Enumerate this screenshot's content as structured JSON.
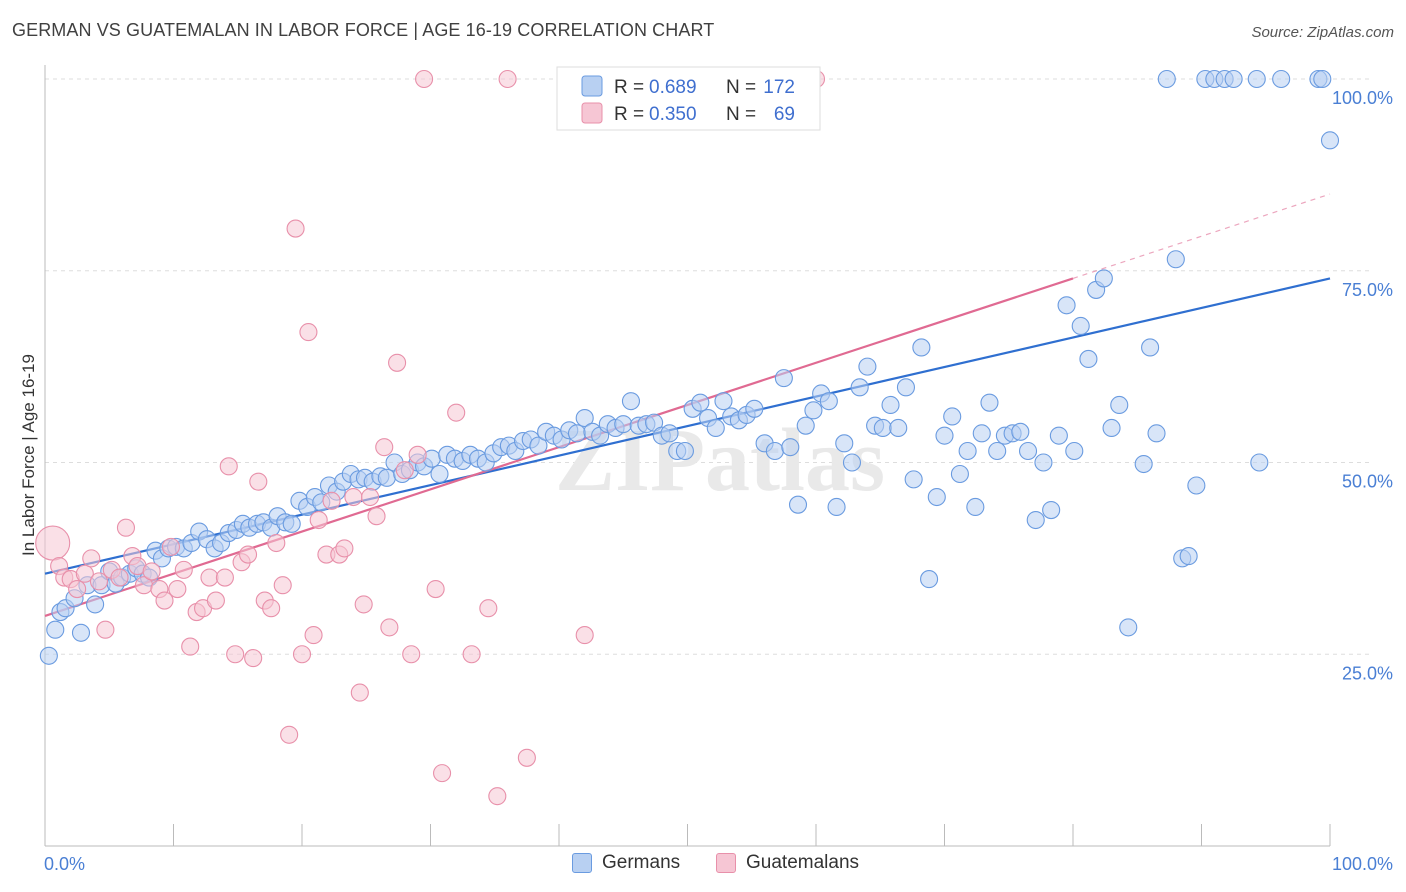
{
  "title": "GERMAN VS GUATEMALAN IN LABOR FORCE | AGE 16-19 CORRELATION CHART",
  "source": "Source: ZipAtlas.com",
  "watermark": "ZIPatlas",
  "chart_data": {
    "type": "scatter",
    "xlabel": "",
    "ylabel": "In Labor Force | Age 16-19",
    "xlim": [
      0,
      100
    ],
    "ylim": [
      0,
      105
    ],
    "x_tick_labels": [
      "0.0%",
      "100.0%"
    ],
    "y_ticks": [
      25,
      50,
      75,
      100
    ],
    "y_tick_labels": [
      "25.0%",
      "50.0%",
      "75.0%",
      "100.0%"
    ],
    "grid": true,
    "legend_top": {
      "rows": [
        {
          "r_label": "R =",
          "r_value": "0.689",
          "n_label": "N =",
          "n_value": "172"
        },
        {
          "r_label": "R =",
          "r_value": "0.350",
          "n_label": "N =",
          "n_value": "69"
        }
      ]
    },
    "series": [
      {
        "name": "Germans",
        "color": "#6a9be0",
        "fill": "#b8d0f2",
        "trend_color": "#2f6fd0",
        "trend": {
          "x": [
            0,
            100
          ],
          "y": [
            35.5,
            74.0
          ]
        },
        "points": [
          [
            0.3,
            24.8
          ],
          [
            0.8,
            28.2
          ],
          [
            1.2,
            30.5
          ],
          [
            1.6,
            31.0
          ],
          [
            2.3,
            32.3
          ],
          [
            2.8,
            27.8
          ],
          [
            3.3,
            34.0
          ],
          [
            3.9,
            31.5
          ],
          [
            4.4,
            34.0
          ],
          [
            5.0,
            35.8
          ],
          [
            5.5,
            34.2
          ],
          [
            6.0,
            35.0
          ],
          [
            6.6,
            35.5
          ],
          [
            7.1,
            36.2
          ],
          [
            7.6,
            35.5
          ],
          [
            8.1,
            35.0
          ],
          [
            8.6,
            38.5
          ],
          [
            9.1,
            37.5
          ],
          [
            9.6,
            38.8
          ],
          [
            10.2,
            39.0
          ],
          [
            10.8,
            38.8
          ],
          [
            11.4,
            39.5
          ],
          [
            12.0,
            41.0
          ],
          [
            12.6,
            40.0
          ],
          [
            13.2,
            38.8
          ],
          [
            13.7,
            39.5
          ],
          [
            14.3,
            40.8
          ],
          [
            14.9,
            41.2
          ],
          [
            15.4,
            42.0
          ],
          [
            15.9,
            41.5
          ],
          [
            16.5,
            42.0
          ],
          [
            17.0,
            42.2
          ],
          [
            17.6,
            41.5
          ],
          [
            18.1,
            43.0
          ],
          [
            18.7,
            42.2
          ],
          [
            19.2,
            42.0
          ],
          [
            19.8,
            45.0
          ],
          [
            20.4,
            44.2
          ],
          [
            21.0,
            45.5
          ],
          [
            21.5,
            44.8
          ],
          [
            22.1,
            47.0
          ],
          [
            22.7,
            46.2
          ],
          [
            23.2,
            47.5
          ],
          [
            23.8,
            48.5
          ],
          [
            24.4,
            47.8
          ],
          [
            24.9,
            48.0
          ],
          [
            25.5,
            47.5
          ],
          [
            26.1,
            48.2
          ],
          [
            26.6,
            48.0
          ],
          [
            27.2,
            50.0
          ],
          [
            27.8,
            48.5
          ],
          [
            28.4,
            49.0
          ],
          [
            29.0,
            50.0
          ],
          [
            29.5,
            49.5
          ],
          [
            30.1,
            50.5
          ],
          [
            30.7,
            48.5
          ],
          [
            31.3,
            51.0
          ],
          [
            31.9,
            50.5
          ],
          [
            32.5,
            50.2
          ],
          [
            33.1,
            51.0
          ],
          [
            33.7,
            50.5
          ],
          [
            34.3,
            50.0
          ],
          [
            34.9,
            51.2
          ],
          [
            35.5,
            52.0
          ],
          [
            36.1,
            52.2
          ],
          [
            36.6,
            51.5
          ],
          [
            37.2,
            52.8
          ],
          [
            37.8,
            53.0
          ],
          [
            38.4,
            52.2
          ],
          [
            39.0,
            54.0
          ],
          [
            39.6,
            53.5
          ],
          [
            40.2,
            53.0
          ],
          [
            40.8,
            54.2
          ],
          [
            41.4,
            53.8
          ],
          [
            42.0,
            55.8
          ],
          [
            42.6,
            54.0
          ],
          [
            43.2,
            53.5
          ],
          [
            43.8,
            55.0
          ],
          [
            44.4,
            54.5
          ],
          [
            45.0,
            55.0
          ],
          [
            45.6,
            58.0
          ],
          [
            46.2,
            54.8
          ],
          [
            46.8,
            55.0
          ],
          [
            47.4,
            55.2
          ],
          [
            48.0,
            53.5
          ],
          [
            48.6,
            53.8
          ],
          [
            49.2,
            51.5
          ],
          [
            49.8,
            51.5
          ],
          [
            50.4,
            57.0
          ],
          [
            51.0,
            57.8
          ],
          [
            51.6,
            55.8
          ],
          [
            52.2,
            54.5
          ],
          [
            52.8,
            58.0
          ],
          [
            53.4,
            56.0
          ],
          [
            54.0,
            55.5
          ],
          [
            54.6,
            56.2
          ],
          [
            55.2,
            57.0
          ],
          [
            56.0,
            52.5
          ],
          [
            56.8,
            51.5
          ],
          [
            57.5,
            61.0
          ],
          [
            58.0,
            52.0
          ],
          [
            58.6,
            44.5
          ],
          [
            59.2,
            54.8
          ],
          [
            59.8,
            56.8
          ],
          [
            60.4,
            59.0
          ],
          [
            61.0,
            58.0
          ],
          [
            61.6,
            44.2
          ],
          [
            62.2,
            52.5
          ],
          [
            62.8,
            50.0
          ],
          [
            63.4,
            59.8
          ],
          [
            64.0,
            62.5
          ],
          [
            64.6,
            54.8
          ],
          [
            65.2,
            54.5
          ],
          [
            65.8,
            57.5
          ],
          [
            66.4,
            54.5
          ],
          [
            67.0,
            59.8
          ],
          [
            67.6,
            47.8
          ],
          [
            68.2,
            65.0
          ],
          [
            68.8,
            34.8
          ],
          [
            69.4,
            45.5
          ],
          [
            70.0,
            53.5
          ],
          [
            70.6,
            56.0
          ],
          [
            71.2,
            48.5
          ],
          [
            71.8,
            51.5
          ],
          [
            72.4,
            44.2
          ],
          [
            72.9,
            53.8
          ],
          [
            73.5,
            57.8
          ],
          [
            74.1,
            51.5
          ],
          [
            74.7,
            53.5
          ],
          [
            75.3,
            53.8
          ],
          [
            75.9,
            54.0
          ],
          [
            76.5,
            51.5
          ],
          [
            77.1,
            42.5
          ],
          [
            77.7,
            50.0
          ],
          [
            78.3,
            43.8
          ],
          [
            78.9,
            53.5
          ],
          [
            79.5,
            70.5
          ],
          [
            80.1,
            51.5
          ],
          [
            80.6,
            67.8
          ],
          [
            81.2,
            63.5
          ],
          [
            81.8,
            72.5
          ],
          [
            82.4,
            74.0
          ],
          [
            83.0,
            54.5
          ],
          [
            83.6,
            57.5
          ],
          [
            84.3,
            28.5
          ],
          [
            85.5,
            49.8
          ],
          [
            86.0,
            65.0
          ],
          [
            86.5,
            53.8
          ],
          [
            87.3,
            100.0
          ],
          [
            88.0,
            76.5
          ],
          [
            88.5,
            37.5
          ],
          [
            89.0,
            37.8
          ],
          [
            89.6,
            47.0
          ],
          [
            90.3,
            100.0
          ],
          [
            91.0,
            100.0
          ],
          [
            91.8,
            100.0
          ],
          [
            92.5,
            100.0
          ],
          [
            94.3,
            100.0
          ],
          [
            96.2,
            100.0
          ],
          [
            94.5,
            50.0
          ],
          [
            99.1,
            100.0
          ],
          [
            99.4,
            100.0
          ],
          [
            100.0,
            92.0
          ]
        ]
      },
      {
        "name": "Guatemalans",
        "color": "#e890aa",
        "fill": "#f6c6d4",
        "trend_color": "#e06a92",
        "trend": {
          "x": [
            0,
            80
          ],
          "y": [
            30.0,
            74.0
          ]
        },
        "trend_dashed": {
          "x": [
            80,
            100
          ],
          "y": [
            74.0,
            85.0
          ]
        },
        "points": [
          [
            0.6,
            39.5
          ],
          [
            1.1,
            36.5
          ],
          [
            1.5,
            35.0
          ],
          [
            2.0,
            34.8
          ],
          [
            2.5,
            33.5
          ],
          [
            3.1,
            35.5
          ],
          [
            3.6,
            37.5
          ],
          [
            4.2,
            34.5
          ],
          [
            4.7,
            28.2
          ],
          [
            5.2,
            36.0
          ],
          [
            5.8,
            35.0
          ],
          [
            6.3,
            41.5
          ],
          [
            6.8,
            37.8
          ],
          [
            7.2,
            36.5
          ],
          [
            7.7,
            34.0
          ],
          [
            8.3,
            35.8
          ],
          [
            8.9,
            33.5
          ],
          [
            9.3,
            32.0
          ],
          [
            9.8,
            39.0
          ],
          [
            10.3,
            33.5
          ],
          [
            10.8,
            36.0
          ],
          [
            11.3,
            26.0
          ],
          [
            11.8,
            30.5
          ],
          [
            12.3,
            31.0
          ],
          [
            12.8,
            35.0
          ],
          [
            13.3,
            32.0
          ],
          [
            14.0,
            35.0
          ],
          [
            14.3,
            49.5
          ],
          [
            14.8,
            25.0
          ],
          [
            15.3,
            37.0
          ],
          [
            15.8,
            38.0
          ],
          [
            16.2,
            24.5
          ],
          [
            16.6,
            47.5
          ],
          [
            17.1,
            32.0
          ],
          [
            17.6,
            31.0
          ],
          [
            18.0,
            39.5
          ],
          [
            18.5,
            34.0
          ],
          [
            19.0,
            14.5
          ],
          [
            19.5,
            80.5
          ],
          [
            20.0,
            25.0
          ],
          [
            20.5,
            67.0
          ],
          [
            20.9,
            27.5
          ],
          [
            21.3,
            42.5
          ],
          [
            21.9,
            38.0
          ],
          [
            22.3,
            45.0
          ],
          [
            22.9,
            38.0
          ],
          [
            23.3,
            38.8
          ],
          [
            24.0,
            45.5
          ],
          [
            24.5,
            20.0
          ],
          [
            24.8,
            31.5
          ],
          [
            25.3,
            45.5
          ],
          [
            25.8,
            43.0
          ],
          [
            26.4,
            52.0
          ],
          [
            26.8,
            28.5
          ],
          [
            27.4,
            63.0
          ],
          [
            28.0,
            49.0
          ],
          [
            28.5,
            25.0
          ],
          [
            29.0,
            51.0
          ],
          [
            29.5,
            100.0
          ],
          [
            30.4,
            33.5
          ],
          [
            30.9,
            9.5
          ],
          [
            32.0,
            56.5
          ],
          [
            33.2,
            25.0
          ],
          [
            34.5,
            31.0
          ],
          [
            35.2,
            6.5
          ],
          [
            36.0,
            100.0
          ],
          [
            37.5,
            11.5
          ],
          [
            42.0,
            27.5
          ],
          [
            60.0,
            100.0
          ]
        ]
      }
    ]
  }
}
